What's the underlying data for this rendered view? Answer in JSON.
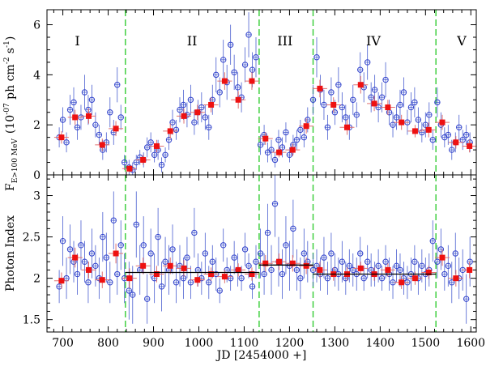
{
  "chart_data": [
    {
      "type": "scatter",
      "panel": "top",
      "ylabel_main": "F",
      "ylabel_sub": "E>100 MeV",
      "ylabel_rest": "(10",
      "ylabel_exp1": "-07",
      "ylabel_unit": " ph cm",
      "ylabel_exp2": "-2",
      "ylabel_unit2": " s",
      "ylabel_exp3": "-1",
      "ylabel_close": ")",
      "ylim": [
        0,
        6.6
      ],
      "yticks": [
        "0",
        "2",
        "4",
        "6"
      ],
      "ytick_values": [
        0,
        2,
        4,
        6
      ],
      "periods": [
        "I",
        "II",
        "III",
        "IV",
        "V"
      ],
      "period_centers": [
        732,
        985,
        1190,
        1385,
        1580
      ],
      "blue_series": {
        "name": "daily",
        "x": [
          692,
          700,
          708,
          716,
          724,
          732,
          740,
          748,
          756,
          764,
          772,
          780,
          788,
          796,
          804,
          812,
          820,
          828,
          836,
          846,
          854,
          862,
          870,
          878,
          886,
          894,
          902,
          910,
          918,
          926,
          934,
          942,
          950,
          958,
          966,
          974,
          982,
          990,
          998,
          1006,
          1014,
          1022,
          1030,
          1038,
          1046,
          1054,
          1062,
          1070,
          1078,
          1086,
          1094,
          1102,
          1110,
          1118,
          1126,
          1136,
          1144,
          1152,
          1160,
          1168,
          1176,
          1184,
          1192,
          1200,
          1208,
          1216,
          1224,
          1232,
          1240,
          1252,
          1260,
          1268,
          1276,
          1284,
          1292,
          1300,
          1308,
          1316,
          1324,
          1332,
          1340,
          1348,
          1356,
          1364,
          1372,
          1380,
          1388,
          1396,
          1404,
          1412,
          1420,
          1428,
          1436,
          1444,
          1452,
          1460,
          1468,
          1476,
          1484,
          1492,
          1500,
          1508,
          1516,
          1526,
          1534,
          1542,
          1550,
          1558,
          1566,
          1574,
          1582,
          1590,
          1598
        ],
        "y": [
          1.5,
          2.2,
          1.3,
          2.6,
          2.9,
          1.9,
          2.3,
          3.3,
          2.6,
          3.0,
          2.0,
          1.6,
          1.0,
          1.3,
          2.5,
          1.7,
          3.6,
          2.3,
          0.5,
          0.3,
          0.2,
          0.5,
          0.7,
          0.6,
          1.1,
          1.3,
          0.8,
          1.0,
          0.4,
          0.8,
          1.4,
          2.1,
          1.8,
          2.6,
          2.8,
          2.4,
          3.0,
          2.1,
          2.5,
          2.7,
          2.3,
          1.9,
          3.0,
          4.0,
          3.3,
          4.6,
          3.7,
          5.2,
          4.1,
          3.5,
          3.1,
          4.4,
          5.6,
          4.2,
          4.7,
          1.2,
          1.6,
          0.9,
          1.0,
          0.6,
          1.4,
          1.1,
          1.7,
          0.8,
          1.2,
          1.4,
          1.8,
          1.5,
          2.2,
          3.0,
          4.7,
          3.4,
          2.8,
          1.9,
          3.3,
          2.5,
          3.6,
          2.7,
          2.3,
          1.9,
          3.0,
          2.4,
          4.2,
          3.5,
          4.5,
          3.1,
          3.4,
          2.7,
          3.1,
          3.8,
          2.5,
          2.0,
          2.3,
          2.8,
          3.3,
          2.1,
          2.7,
          2.9,
          2.2,
          1.7,
          2.0,
          2.4,
          1.4,
          2.9,
          2.0,
          1.5,
          1.6,
          1.0,
          1.3,
          1.9,
          1.4,
          1.6,
          1.3
        ],
        "err": [
          0.4,
          0.5,
          0.4,
          0.6,
          0.6,
          0.5,
          0.5,
          0.7,
          0.6,
          0.6,
          0.5,
          0.4,
          0.4,
          0.4,
          0.6,
          0.5,
          0.7,
          0.5,
          0.3,
          0.3,
          0.3,
          0.3,
          0.3,
          0.3,
          0.4,
          0.4,
          0.3,
          0.4,
          0.3,
          0.3,
          0.4,
          0.5,
          0.4,
          0.5,
          0.6,
          0.5,
          0.6,
          0.5,
          0.5,
          0.6,
          0.5,
          0.5,
          0.6,
          0.7,
          0.6,
          0.8,
          0.7,
          0.8,
          0.7,
          0.6,
          0.6,
          0.7,
          0.9,
          0.7,
          0.8,
          0.4,
          0.4,
          0.4,
          0.4,
          0.3,
          0.4,
          0.4,
          0.4,
          0.3,
          0.4,
          0.4,
          0.4,
          0.4,
          0.5,
          0.6,
          0.8,
          0.6,
          0.6,
          0.5,
          0.6,
          0.5,
          0.7,
          0.6,
          0.5,
          0.5,
          0.6,
          0.5,
          0.7,
          0.6,
          0.7,
          0.6,
          0.6,
          0.6,
          0.6,
          0.7,
          0.5,
          0.5,
          0.5,
          0.6,
          0.6,
          0.5,
          0.6,
          0.6,
          0.5,
          0.4,
          0.5,
          0.5,
          0.4,
          0.6,
          0.5,
          0.4,
          0.4,
          0.4,
          0.4,
          0.5,
          0.4,
          0.4,
          0.4
        ]
      },
      "red_series": {
        "name": "binned",
        "x": [
          697,
          727,
          757,
          787,
          817,
          847,
          877,
          907,
          937,
          967,
          997,
          1027,
          1057,
          1087,
          1117,
          1147,
          1177,
          1207,
          1237,
          1267,
          1297,
          1327,
          1357,
          1387,
          1417,
          1447,
          1477,
          1507,
          1537,
          1567,
          1597
        ],
        "y": [
          1.5,
          2.3,
          2.35,
          1.2,
          1.85,
          0.25,
          0.6,
          1.15,
          1.75,
          2.35,
          2.5,
          2.8,
          3.75,
          3.0,
          3.75,
          1.45,
          0.9,
          1.0,
          1.95,
          3.45,
          2.8,
          1.9,
          3.6,
          2.85,
          2.7,
          2.1,
          1.75,
          1.8,
          2.1,
          1.3,
          1.15
        ],
        "err": [
          0.25,
          0.3,
          0.3,
          0.25,
          0.3,
          0.15,
          0.2,
          0.25,
          0.3,
          0.3,
          0.3,
          0.3,
          0.35,
          0.35,
          0.35,
          0.25,
          0.2,
          0.25,
          0.3,
          0.35,
          0.3,
          0.3,
          0.35,
          0.3,
          0.3,
          0.3,
          0.25,
          0.3,
          0.3,
          0.25,
          0.25
        ]
      }
    },
    {
      "type": "scatter",
      "panel": "bottom",
      "ylabel": "Photon Index",
      "xlabel": "JD [2454000 +]",
      "xlim": [
        665,
        1612
      ],
      "xticks": [
        "700",
        "800",
        "900",
        "1000",
        "1100",
        "1200",
        "1300",
        "1400",
        "1500",
        "1600"
      ],
      "xtick_values": [
        700,
        800,
        900,
        1000,
        1100,
        1200,
        1300,
        1400,
        1500,
        1600
      ],
      "ylim": [
        1.35,
        3.25
      ],
      "yticks": [
        "1.5",
        "2",
        "2.5",
        "3"
      ],
      "ytick_values": [
        1.5,
        2,
        2.5,
        3
      ],
      "divisions_jd": [
        838,
        1133,
        1252,
        1523
      ],
      "fit_lines": [
        {
          "x": [
            838,
            1133
          ],
          "y": [
            2.07,
            2.07
          ]
        },
        {
          "x": [
            1133,
            1252
          ],
          "y": [
            2.16,
            2.16
          ]
        },
        {
          "x": [
            1252,
            1523
          ],
          "y": [
            2.05,
            2.05
          ]
        }
      ],
      "blue_series": {
        "name": "daily",
        "x": [
          692,
          700,
          708,
          716,
          724,
          732,
          740,
          748,
          756,
          764,
          772,
          780,
          788,
          796,
          804,
          812,
          820,
          828,
          836,
          846,
          854,
          862,
          870,
          878,
          886,
          894,
          902,
          910,
          918,
          926,
          934,
          942,
          950,
          958,
          966,
          974,
          982,
          990,
          998,
          1006,
          1014,
          1022,
          1030,
          1038,
          1046,
          1054,
          1062,
          1070,
          1078,
          1086,
          1094,
          1102,
          1110,
          1118,
          1126,
          1136,
          1144,
          1152,
          1160,
          1168,
          1176,
          1184,
          1192,
          1200,
          1208,
          1216,
          1224,
          1232,
          1240,
          1252,
          1260,
          1268,
          1276,
          1284,
          1292,
          1300,
          1308,
          1316,
          1324,
          1332,
          1340,
          1348,
          1356,
          1364,
          1372,
          1380,
          1388,
          1396,
          1404,
          1412,
          1420,
          1428,
          1436,
          1444,
          1452,
          1460,
          1468,
          1476,
          1484,
          1492,
          1500,
          1508,
          1516,
          1526,
          1534,
          1542,
          1550,
          1558,
          1566,
          1574,
          1582,
          1590,
          1598
        ],
        "y": [
          1.9,
          2.45,
          2.0,
          2.35,
          2.2,
          2.05,
          2.4,
          2.2,
          1.95,
          2.3,
          2.15,
          2.0,
          2.5,
          2.25,
          1.95,
          2.7,
          2.05,
          2.4,
          2.0,
          1.85,
          1.8,
          2.65,
          2.1,
          2.4,
          1.75,
          2.3,
          2.0,
          2.5,
          1.9,
          2.2,
          2.1,
          2.35,
          1.95,
          2.15,
          2.0,
          2.25,
          1.95,
          2.55,
          2.1,
          2.0,
          2.3,
          1.95,
          2.2,
          2.05,
          1.85,
          2.4,
          2.1,
          2.0,
          2.25,
          2.1,
          2.0,
          2.35,
          2.15,
          1.9,
          2.2,
          2.3,
          2.05,
          2.55,
          2.1,
          2.9,
          2.2,
          2.05,
          2.4,
          2.15,
          2.6,
          2.1,
          2.0,
          2.3,
          2.2,
          2.1,
          2.15,
          2.05,
          2.25,
          2.0,
          2.3,
          2.1,
          2.05,
          2.2,
          2.0,
          2.15,
          2.1,
          2.05,
          2.3,
          2.0,
          2.2,
          2.1,
          2.05,
          2.15,
          2.0,
          2.2,
          2.05,
          1.95,
          2.15,
          2.1,
          2.0,
          1.95,
          2.05,
          2.2,
          2.0,
          2.15,
          2.05,
          2.1,
          2.45,
          2.2,
          2.35,
          2.05,
          2.15,
          1.95,
          2.3,
          2.0,
          2.1,
          1.75,
          2.2
        ],
        "err": [
          0.2,
          0.3,
          0.25,
          0.3,
          0.25,
          0.25,
          0.3,
          0.25,
          0.25,
          0.3,
          0.25,
          0.25,
          0.3,
          0.3,
          0.25,
          0.35,
          0.25,
          0.3,
          0.3,
          0.35,
          0.35,
          0.4,
          0.3,
          0.35,
          0.3,
          0.3,
          0.3,
          0.35,
          0.3,
          0.3,
          0.3,
          0.3,
          0.25,
          0.25,
          0.25,
          0.25,
          0.2,
          0.3,
          0.2,
          0.2,
          0.25,
          0.2,
          0.2,
          0.2,
          0.15,
          0.2,
          0.15,
          0.15,
          0.2,
          0.2,
          0.15,
          0.2,
          0.15,
          0.15,
          0.2,
          0.3,
          0.25,
          0.35,
          0.3,
          0.4,
          0.3,
          0.3,
          0.35,
          0.3,
          0.35,
          0.25,
          0.25,
          0.3,
          0.25,
          0.2,
          0.2,
          0.2,
          0.25,
          0.2,
          0.25,
          0.2,
          0.2,
          0.25,
          0.2,
          0.2,
          0.2,
          0.2,
          0.2,
          0.15,
          0.2,
          0.2,
          0.15,
          0.2,
          0.15,
          0.2,
          0.2,
          0.2,
          0.2,
          0.2,
          0.2,
          0.2,
          0.2,
          0.2,
          0.2,
          0.2,
          0.2,
          0.2,
          0.25,
          0.2,
          0.25,
          0.2,
          0.25,
          0.25,
          0.25,
          0.25,
          0.25,
          0.3,
          0.3
        ]
      },
      "red_series": {
        "name": "binned",
        "x": [
          697,
          727,
          757,
          787,
          817,
          847,
          877,
          907,
          937,
          967,
          997,
          1027,
          1057,
          1087,
          1117,
          1147,
          1177,
          1207,
          1237,
          1267,
          1297,
          1327,
          1357,
          1387,
          1417,
          1447,
          1477,
          1507,
          1537,
          1567,
          1597
        ],
        "y": [
          1.97,
          2.25,
          2.1,
          1.98,
          2.3,
          2.0,
          2.15,
          2.05,
          2.15,
          2.12,
          1.98,
          2.05,
          2.02,
          2.1,
          2.05,
          2.18,
          2.2,
          2.18,
          2.15,
          2.1,
          2.05,
          2.05,
          2.12,
          2.05,
          2.1,
          1.95,
          2.0,
          2.07,
          2.25,
          2.0,
          2.1
        ],
        "err": [
          0.1,
          0.12,
          0.1,
          0.1,
          0.12,
          0.12,
          0.1,
          0.1,
          0.1,
          0.1,
          0.08,
          0.08,
          0.08,
          0.08,
          0.08,
          0.1,
          0.1,
          0.1,
          0.1,
          0.1,
          0.08,
          0.08,
          0.08,
          0.08,
          0.08,
          0.08,
          0.08,
          0.08,
          0.1,
          0.1,
          0.1
        ]
      }
    }
  ]
}
